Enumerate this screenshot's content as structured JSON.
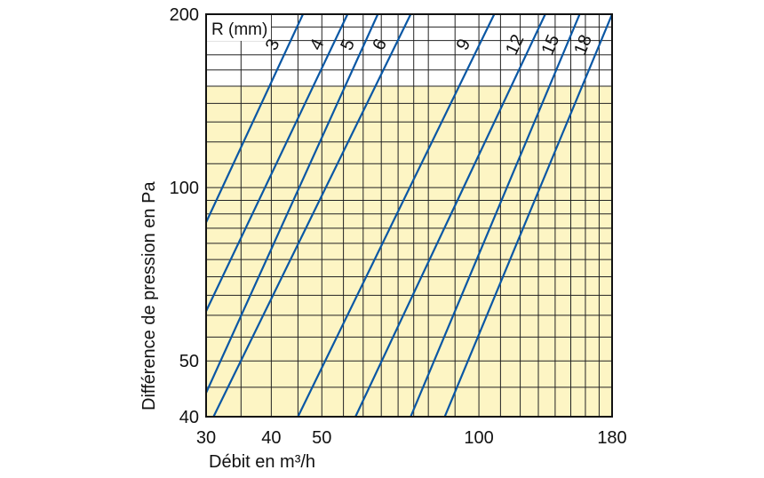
{
  "chart_data": {
    "type": "line",
    "title": "",
    "xlabel": "Débit en m³/h",
    "ylabel": "Différence de pression en Pa",
    "x_scale": "log",
    "y_scale": "log",
    "xlim": [
      30,
      180
    ],
    "ylim": [
      40,
      200
    ],
    "x_ticks": [
      30,
      40,
      50,
      100,
      180
    ],
    "y_ticks": [
      40,
      50,
      100,
      200
    ],
    "x_gridlines": [
      30,
      35,
      40,
      45,
      50,
      55,
      60,
      65,
      70,
      75,
      80,
      90,
      100,
      110,
      120,
      130,
      140,
      150,
      160,
      170,
      180
    ],
    "y_gridlines": [
      40,
      45,
      50,
      55,
      60,
      65,
      70,
      75,
      80,
      85,
      90,
      95,
      100,
      110,
      120,
      130,
      140,
      150,
      160,
      170,
      180,
      190,
      200
    ],
    "shaded_band": {
      "y_range": [
        40,
        150
      ],
      "color": "#fdf5c4"
    },
    "colors": {
      "line": "#0a57a4",
      "grid": "#222222",
      "shade": "#fdf5c4"
    },
    "legend_title": "R (mm)",
    "series": [
      {
        "name": "3",
        "points": [
          [
            30,
            87
          ],
          [
            46,
            200
          ]
        ]
      },
      {
        "name": "4",
        "points": [
          [
            30,
            61
          ],
          [
            56,
            200
          ]
        ]
      },
      {
        "name": "5",
        "points": [
          [
            30,
            44
          ],
          [
            64,
            200
          ]
        ]
      },
      {
        "name": "6",
        "points": [
          [
            31,
            40
          ],
          [
            74,
            200
          ]
        ]
      },
      {
        "name": "9",
        "points": [
          [
            45,
            40
          ],
          [
            107,
            200
          ]
        ]
      },
      {
        "name": "12",
        "points": [
          [
            58,
            40
          ],
          [
            134,
            200
          ]
        ]
      },
      {
        "name": "15",
        "points": [
          [
            74,
            40
          ],
          [
            156,
            200
          ]
        ]
      },
      {
        "name": "18",
        "points": [
          [
            86,
            40
          ],
          [
            180,
            200
          ]
        ]
      }
    ]
  }
}
